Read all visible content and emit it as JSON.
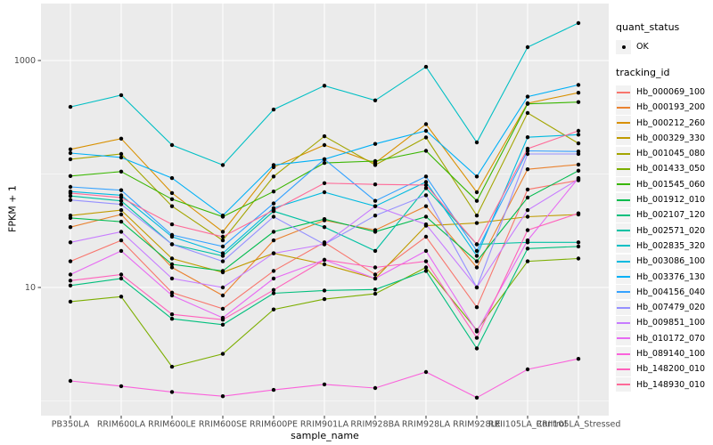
{
  "chart_data": {
    "type": "line",
    "title": "",
    "xlabel": "sample_name",
    "ylabel": "FPKM + 1",
    "y_scale": "log10",
    "y_tick_labels": [
      "10",
      "1000"
    ],
    "y_major_breaks": [
      10,
      1000
    ],
    "y_minor_breaks": [
      1,
      100
    ],
    "ylim": [
      0.85,
      2900
    ],
    "grid": true,
    "legend_position": "right",
    "panel_bg": "#EBEBEB",
    "gridline_color": "#FFFFFF",
    "axis_text_color": "#4D4D4D",
    "tick_mark_color": "#333333",
    "point_color": "#000000",
    "categories": [
      "PB350LA",
      "RRIM600LA",
      "RRIM600LE",
      "RRIM600SE",
      "RRIM600PE",
      "RRIM901LA",
      "RRIM928BA",
      "RRIM928LA",
      "RRIM928LE",
      "RRII105LA_Control",
      "RRII105LA_Stressed"
    ],
    "legend": {
      "quant_title": "quant_status",
      "quant_items": [
        "OK"
      ],
      "tracking_title": "tracking_id"
    },
    "series": [
      {
        "name": "Hb_000069_100",
        "color": "#F8766D",
        "values": [
          17,
          26,
          9,
          6.5,
          14,
          25,
          13,
          28,
          6.7,
          73,
          88
        ]
      },
      {
        "name": "Hb_000193_200",
        "color": "#EA8331",
        "values": [
          34,
          44,
          15,
          8.5,
          26,
          39,
          32,
          52,
          15,
          110,
          121
        ]
      },
      {
        "name": "Hb_000212_260",
        "color": "#D89000",
        "values": [
          165,
          205,
          68,
          31,
          115,
          180,
          125,
          275,
          69,
          420,
          520
        ]
      },
      {
        "name": "Hb_000329_330",
        "color": "#C09B00",
        "values": [
          43,
          48,
          18,
          13.6,
          20,
          16,
          12,
          35,
          37,
          42,
          44
        ]
      },
      {
        "name": "Hb_001045_080",
        "color": "#A3A500",
        "values": [
          135,
          150,
          52,
          26,
          95,
          215,
          120,
          210,
          43,
          345,
          186
        ]
      },
      {
        "name": "Hb_001433_050",
        "color": "#7CAE00",
        "values": [
          7.5,
          8.3,
          2.0,
          2.6,
          6.4,
          7.9,
          8.8,
          15,
          4.2,
          17,
          18
        ]
      },
      {
        "name": "Hb_001545_060",
        "color": "#39B600",
        "values": [
          96,
          105,
          60,
          42,
          70,
          125,
          130,
          160,
          58,
          415,
          430
        ]
      },
      {
        "name": "Hb_001912_010",
        "color": "#00BB4E",
        "values": [
          41,
          38,
          16,
          14,
          31,
          40,
          31,
          42,
          17,
          62,
          107
        ]
      },
      {
        "name": "Hb_002107_120",
        "color": "#00BF7D",
        "values": [
          10.4,
          12,
          5.3,
          4.7,
          8.9,
          9.4,
          9.6,
          14,
          2.9,
          22,
          23
        ]
      },
      {
        "name": "Hb_002571_020",
        "color": "#00C1A3",
        "values": [
          64,
          58,
          24,
          19,
          47,
          34,
          21,
          75,
          24,
          25,
          25
        ]
      },
      {
        "name": "Hb_002835_320",
        "color": "#00BFC4",
        "values": [
          390,
          495,
          180,
          120,
          370,
          600,
          445,
          880,
          190,
          1310,
          2140
        ]
      },
      {
        "name": "Hb_003086_100",
        "color": "#00BAE0",
        "values": [
          70,
          65,
          28,
          20,
          50,
          69,
          52,
          85,
          19,
          211,
          222
        ]
      },
      {
        "name": "Hb_003376_130",
        "color": "#00B0F6",
        "values": [
          153,
          140,
          92,
          43,
          120,
          135,
          184,
          240,
          95,
          480,
          610
        ]
      },
      {
        "name": "Hb_004156_040",
        "color": "#35A2FF",
        "values": [
          77,
          72,
          29,
          23,
          55,
          135,
          58,
          95,
          21,
          160,
          158
        ]
      },
      {
        "name": "Hb_007479_020",
        "color": "#9590FF",
        "values": [
          59,
          54,
          24,
          17,
          42,
          24,
          43,
          65,
          10,
          150,
          150
        ]
      },
      {
        "name": "Hb_009851_100",
        "color": "#C77CFF",
        "values": [
          25,
          31,
          12,
          10,
          20,
          24,
          52,
          36,
          10,
          48,
          90
        ]
      },
      {
        "name": "Hb_010172_070",
        "color": "#E76BF3",
        "values": [
          13,
          21,
          8.5,
          5.4,
          12,
          17.5,
          12,
          21,
          4.1,
          26,
          92
        ]
      },
      {
        "name": "Hb_089140_100",
        "color": "#FA62DB",
        "values": [
          1.5,
          1.35,
          1.2,
          1.1,
          1.25,
          1.4,
          1.3,
          1.8,
          1.07,
          1.9,
          2.35
        ]
      },
      {
        "name": "Hb_148200_010",
        "color": "#FF62BC",
        "values": [
          11.5,
          13,
          5.8,
          5.2,
          9.5,
          17.5,
          15,
          17,
          3.6,
          32,
          45
        ]
      },
      {
        "name": "Hb_148930_010",
        "color": "#FF6A98",
        "values": [
          68,
          62,
          36,
          28,
          48,
          83,
          81,
          80,
          24,
          167,
          240
        ]
      }
    ]
  }
}
